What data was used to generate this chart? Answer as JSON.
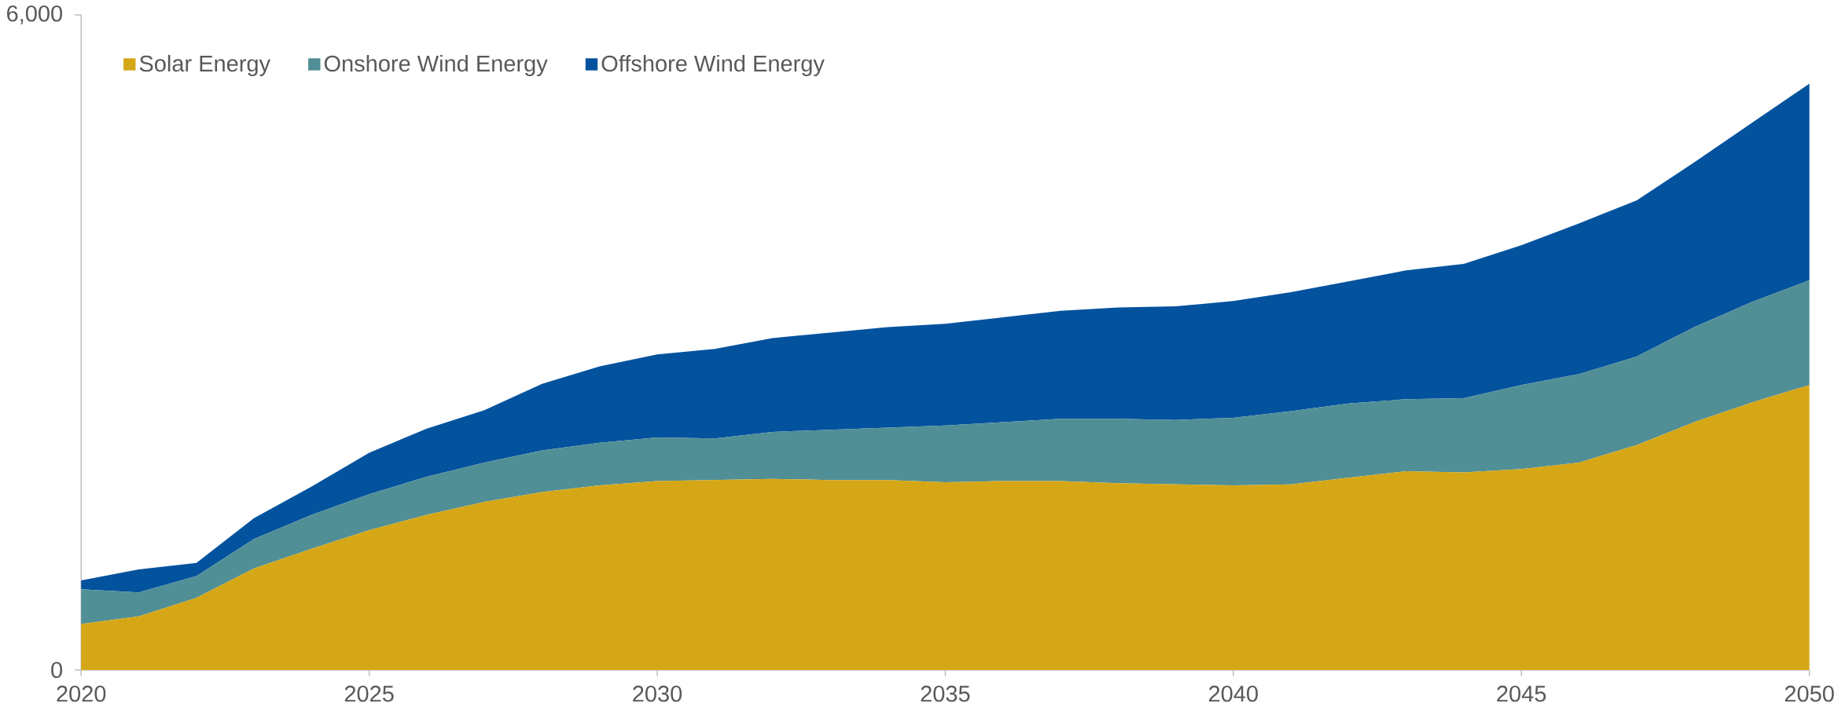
{
  "chart_data": {
    "type": "area",
    "stacked": true,
    "x": [
      2020,
      2021,
      2022,
      2023,
      2024,
      2025,
      2026,
      2027,
      2028,
      2029,
      2030,
      2031,
      2032,
      2033,
      2034,
      2035,
      2036,
      2037,
      2038,
      2039,
      2040,
      2041,
      2042,
      2043,
      2044,
      2045,
      2046,
      2047,
      2048,
      2049,
      2050
    ],
    "series": [
      {
        "name": "Solar Energy",
        "color": "#d5a717",
        "values": [
          420,
          490,
          660,
          930,
          1110,
          1280,
          1420,
          1540,
          1630,
          1690,
          1730,
          1740,
          1750,
          1740,
          1740,
          1720,
          1730,
          1730,
          1710,
          1700,
          1690,
          1700,
          1760,
          1820,
          1810,
          1840,
          1900,
          2060,
          2270,
          2450,
          2610
        ]
      },
      {
        "name": "Onshore Wind Energy",
        "color": "#518f97",
        "values": [
          320,
          220,
          200,
          270,
          310,
          330,
          350,
          360,
          380,
          390,
          400,
          380,
          430,
          460,
          480,
          520,
          540,
          570,
          590,
          590,
          620,
          670,
          680,
          660,
          680,
          770,
          810,
          810,
          870,
          920,
          960
        ]
      },
      {
        "name": "Offshore Wind Energy",
        "color": "#02529e",
        "values": [
          80,
          210,
          120,
          190,
          260,
          380,
          440,
          480,
          610,
          700,
          760,
          820,
          860,
          890,
          920,
          930,
          960,
          990,
          1020,
          1040,
          1070,
          1090,
          1120,
          1180,
          1230,
          1280,
          1380,
          1430,
          1510,
          1640,
          1800
        ]
      }
    ],
    "xlim": [
      2020,
      2050
    ],
    "xticks": [
      2020,
      2025,
      2030,
      2035,
      2040,
      2045,
      2050
    ],
    "ylim": [
      0,
      6000
    ],
    "yticks": [
      0,
      {
        "value": 6000,
        "label": "6,000"
      }
    ],
    "legend": "top left"
  }
}
